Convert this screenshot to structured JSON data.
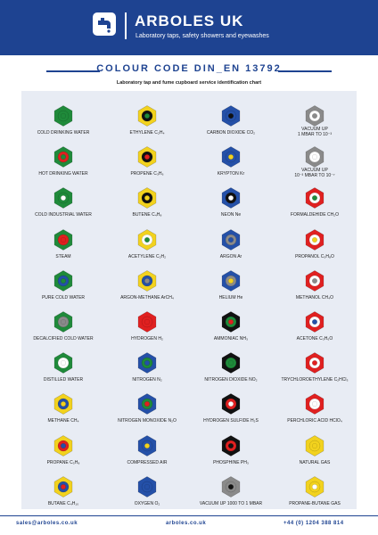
{
  "header": {
    "brand": "ARBOLES UK",
    "tagline": "Laboratory taps, safety showers and eyewashes"
  },
  "title": "COLOUR CODE DIN_EN 13792",
  "subtitle": "Laboratory tap and fume cupboard service identification chart",
  "items": [
    {
      "label": "COLD DRINKING WATER",
      "line2": "",
      "shell": "#1f8a3a",
      "ring": "#1f8a3a",
      "dot": "#1f8a3a"
    },
    {
      "label": "HOT DRINKING WATER",
      "line2": "",
      "shell": "#1f8a3a",
      "ring": "#e02020",
      "dot": "#1f8a3a"
    },
    {
      "label": "COLD INDUSTRIAL WATER",
      "line2": "",
      "shell": "#1f8a3a",
      "ring": "#1f8a3a",
      "dot": "#ffffff"
    },
    {
      "label": "STEAM",
      "line2": "",
      "shell": "#1f8a3a",
      "ring": "#e02020",
      "dot": "#e02020"
    },
    {
      "label": "PURE COLD WATER",
      "line2": "",
      "shell": "#1f8a3a",
      "ring": "#2450a8",
      "dot": "#1f8a3a"
    },
    {
      "label": "DECALCIFIED COLD WATER",
      "line2": "",
      "shell": "#1f8a3a",
      "ring": "#8a8a8a",
      "dot": "#8a8a8a"
    },
    {
      "label": "DISTILLED WATER",
      "line2": "",
      "shell": "#1f8a3a",
      "ring": "#ffffff",
      "dot": "#ffffff"
    },
    {
      "label": "METHANE CH₄",
      "line2": "",
      "shell": "#f2d21e",
      "ring": "#2450a8",
      "dot": "#f2d21e"
    },
    {
      "label": "PROPANE C₃H₈",
      "line2": "",
      "shell": "#f2d21e",
      "ring": "#e02020",
      "dot": "#2450a8"
    },
    {
      "label": "BUTANE C₄H₁₀",
      "line2": "",
      "shell": "#f2d21e",
      "ring": "#2450a8",
      "dot": "#e02020"
    },
    {
      "label": "ETHYLENE C₂H₄",
      "line2": "",
      "shell": "#f2d21e",
      "ring": "#111111",
      "dot": "#1f8a3a"
    },
    {
      "label": "PROPENE C₃H₆",
      "line2": "",
      "shell": "#f2d21e",
      "ring": "#111111",
      "dot": "#e02020"
    },
    {
      "label": "BUTENE C₄H₈",
      "line2": "",
      "shell": "#f2d21e",
      "ring": "#111111",
      "dot": "#f2d21e"
    },
    {
      "label": "ACETYLENE C₂H₂",
      "line2": "",
      "shell": "#f2d21e",
      "ring": "#ffffff",
      "dot": "#1f8a3a"
    },
    {
      "label": "ARGON-METHANE ArCH₄",
      "line2": "",
      "shell": "#f2d21e",
      "ring": "#2450a8",
      "dot": "#8a8a8a"
    },
    {
      "label": "HYDROGEN H₂",
      "line2": "",
      "shell": "#e02020",
      "ring": "#e02020",
      "dot": "#e02020"
    },
    {
      "label": "NITROGEN N₂",
      "line2": "",
      "shell": "#2450a8",
      "ring": "#1f8a3a",
      "dot": "#2450a8"
    },
    {
      "label": "NITROGEN MONOXIDE N₂O",
      "line2": "",
      "shell": "#2450a8",
      "ring": "#1f8a3a",
      "dot": "#e02020"
    },
    {
      "label": "COMPRESSED AIR",
      "line2": "",
      "shell": "#2450a8",
      "ring": "#2450a8",
      "dot": "#f2d21e"
    },
    {
      "label": "OXYGEN O₂",
      "line2": "",
      "shell": "#2450a8",
      "ring": "#2450a8",
      "dot": "#2450a8"
    },
    {
      "label": "CARBON DIOXIDE CO₂",
      "line2": "",
      "shell": "#2450a8",
      "ring": "#2450a8",
      "dot": "#111111"
    },
    {
      "label": "KRYPTON Kr",
      "line2": "",
      "shell": "#2450a8",
      "ring": "#2450a8",
      "dot": "#f2d21e"
    },
    {
      "label": "NEON Ne",
      "line2": "",
      "shell": "#2450a8",
      "ring": "#111111",
      "dot": "#ffffff"
    },
    {
      "label": "ARGON Ar",
      "line2": "",
      "shell": "#2450a8",
      "ring": "#8a8a8a",
      "dot": "#2450a8"
    },
    {
      "label": "HELIUM He",
      "line2": "",
      "shell": "#2450a8",
      "ring": "#8a8a8a",
      "dot": "#f2d21e"
    },
    {
      "label": "AMMONIAC NH₃",
      "line2": "",
      "shell": "#111111",
      "ring": "#1f8a3a",
      "dot": "#e02020"
    },
    {
      "label": "NITROGEN DIOXIDE NO₂",
      "line2": "",
      "shell": "#111111",
      "ring": "#1f8a3a",
      "dot": "#1f8a3a"
    },
    {
      "label": "HYDROGEN SULFIDE H₂S",
      "line2": "",
      "shell": "#111111",
      "ring": "#e02020",
      "dot": "#ffffff"
    },
    {
      "label": "PHOSPHINE PH₃",
      "line2": "",
      "shell": "#111111",
      "ring": "#e02020",
      "dot": "#111111"
    },
    {
      "label": "VACUUM UP 1000 TO 1 MBAR",
      "line2": "",
      "shell": "#8a8a8a",
      "ring": "#8a8a8a",
      "dot": "#111111"
    },
    {
      "label": "VACUUM UP",
      "line2": "1 MBAR TO 10⁻³",
      "shell": "#8a8a8a",
      "ring": "#ffffff",
      "dot": "#8a8a8a"
    },
    {
      "label": "VACUUM UP",
      "line2": "10⁻³ MBAR TO 10⁻⁷",
      "shell": "#8a8a8a",
      "ring": "#ffffff",
      "dot": "#ffffff"
    },
    {
      "label": "FORMALDEHIDE CH₂O",
      "line2": "",
      "shell": "#e02020",
      "ring": "#ffffff",
      "dot": "#1f8a3a"
    },
    {
      "label": "PROPANOL C₃H₈O",
      "line2": "",
      "shell": "#e02020",
      "ring": "#ffffff",
      "dot": "#f2d21e"
    },
    {
      "label": "METHANOL CH₄O",
      "line2": "",
      "shell": "#e02020",
      "ring": "#ffffff",
      "dot": "#8a8a8a"
    },
    {
      "label": "ACETONE C₃H₆O",
      "line2": "",
      "shell": "#e02020",
      "ring": "#ffffff",
      "dot": "#2450a8"
    },
    {
      "label": "TRYCHLOROETHYLENE C₂HCl₃",
      "line2": "",
      "shell": "#e02020",
      "ring": "#ffffff",
      "dot": "#e02020"
    },
    {
      "label": "PERCHLORIC ACID HClO₄",
      "line2": "",
      "shell": "#e02020",
      "ring": "#ffffff",
      "dot": "#ffffff"
    },
    {
      "label": "NATURAL GAS",
      "line2": "",
      "shell": "#f2d21e",
      "ring": "#f2d21e",
      "dot": "#f2d21e"
    },
    {
      "label": "PROPANE-BUTANE GAS",
      "line2": "",
      "shell": "#f2d21e",
      "ring": "#f2d21e",
      "dot": "#ffffff"
    }
  ],
  "footer": {
    "email": "sales@arboles.co.uk",
    "website": "arboles.co.uk",
    "phone": "+44 (0) 1204 388 814"
  }
}
